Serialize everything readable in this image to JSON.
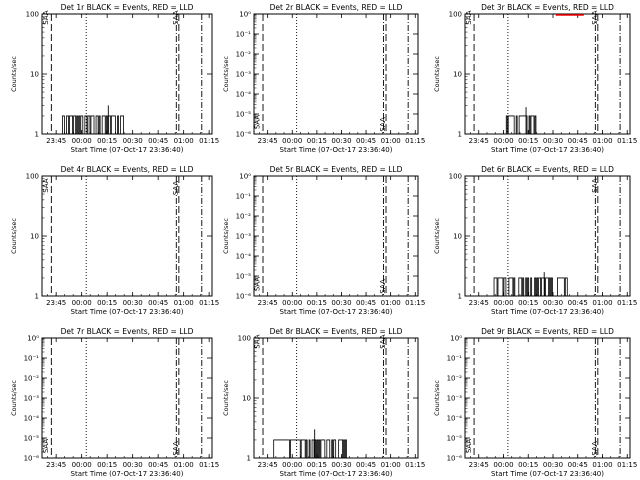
{
  "colors": {
    "events": "#000000",
    "lld": "#ff0000",
    "background": "#ffffff"
  },
  "common": {
    "xlabel": "Start Time (07-Oct-17 23:36:40)",
    "ylabel": "Counts/sec",
    "xticks": [
      "23:45",
      "00:00",
      "00:15",
      "00:30",
      "00:45",
      "01:00",
      "01:15"
    ],
    "x_tick_minutes_from_start": [
      8.33,
      23.33,
      38.33,
      53.33,
      68.33,
      83.33,
      98.33
    ],
    "xlim_minutes_from_start": [
      0,
      100
    ],
    "marker_lines": [
      {
        "style": "dashed",
        "minutes": 5.5
      },
      {
        "style": "dotted",
        "minutes": 26.0
      },
      {
        "style": "dash-dot",
        "minutes": 79.0
      },
      {
        "style": "dashed",
        "minutes": 80.5
      },
      {
        "style": "dash-dot",
        "minutes": 94.0
      }
    ]
  },
  "chart_data": [
    {
      "type": "line",
      "title": "Det 1r BLACK = Events, RED = LLD",
      "scale": "log",
      "ylim": [
        1,
        100
      ],
      "ytick_labels": [
        {
          "v": 1,
          "t": "1"
        },
        {
          "v": 10,
          "t": "10"
        },
        {
          "v": 100,
          "t": "100"
        }
      ],
      "series": [
        {
          "values_from_minutes": [
            [
              12,
              2
            ],
            [
              48,
              2
            ]
          ],
          "style": "bursts",
          "peak": {
            "minutes": 39,
            "value": 3
          }
        }
      ],
      "labels": [
        {
          "text": "SAA",
          "minutes": 3.5,
          "frac": 0.97
        },
        {
          "text": "SAA",
          "minutes": 80,
          "frac": 0.97
        }
      ]
    },
    {
      "type": "line",
      "title": "Det 2r BLACK = Events, RED = LLD",
      "scale": "log",
      "ylim": [
        1e-06,
        1
      ],
      "ytick_labels": [
        {
          "v": 1e-06,
          "t": "10⁻⁶"
        },
        {
          "v": 1e-05,
          "t": "10⁻⁵"
        },
        {
          "v": 0.0001,
          "t": "10⁻⁴"
        },
        {
          "v": 0.001,
          "t": "10⁻³"
        },
        {
          "v": 0.01,
          "t": "10⁻²"
        },
        {
          "v": 0.1,
          "t": "10⁻¹"
        },
        {
          "v": 1,
          "t": "10⁰"
        }
      ],
      "series": [],
      "labels": [
        {
          "text": "SAA",
          "minutes": 3.5,
          "frac": 0.1
        },
        {
          "text": "SAA",
          "minutes": 80,
          "frac": 0.08
        }
      ]
    },
    {
      "type": "line",
      "title": "Det 3r BLACK = Events, RED = LLD",
      "scale": "log",
      "ylim": [
        1,
        100
      ],
      "ytick_labels": [
        {
          "v": 1,
          "t": "1"
        },
        {
          "v": 10,
          "t": "10"
        },
        {
          "v": 100,
          "t": "100"
        }
      ],
      "series": [
        {
          "values_from_minutes": [
            [
              25,
              2
            ],
            [
              33,
              2
            ],
            [
              43,
              2
            ]
          ],
          "style": "bursts",
          "peak": {
            "minutes": 37,
            "value": 2.8
          }
        }
      ],
      "labels": [
        {
          "text": "SAA",
          "minutes": 3.5,
          "frac": 0.97
        },
        {
          "text": "SAA",
          "minutes": 80,
          "frac": 0.97
        }
      ]
    },
    {
      "type": "line",
      "title": "Det 4r BLACK = Events, RED = LLD",
      "scale": "log",
      "ylim": [
        1,
        100
      ],
      "ytick_labels": [
        {
          "v": 1,
          "t": "1"
        },
        {
          "v": 10,
          "t": "10"
        },
        {
          "v": 100,
          "t": "100"
        }
      ],
      "series": [],
      "labels": [
        {
          "text": "SAA",
          "minutes": 3.5,
          "frac": 0.92
        },
        {
          "text": "SAA",
          "minutes": 80,
          "frac": 0.9
        }
      ]
    },
    {
      "type": "line",
      "title": "Det 5r BLACK = Events, RED = LLD",
      "scale": "log",
      "ylim": [
        1e-06,
        1
      ],
      "ytick_labels": [
        {
          "v": 1e-06,
          "t": "10⁻⁶"
        },
        {
          "v": 1e-05,
          "t": "10⁻⁵"
        },
        {
          "v": 0.0001,
          "t": "10⁻⁴"
        },
        {
          "v": 0.001,
          "t": "10⁻³"
        },
        {
          "v": 0.01,
          "t": "10⁻²"
        },
        {
          "v": 0.1,
          "t": "10⁻¹"
        },
        {
          "v": 1,
          "t": "10⁰"
        }
      ],
      "series": [],
      "labels": [
        {
          "text": "SAA",
          "minutes": 3.5,
          "frac": 0.1
        },
        {
          "text": "SAA",
          "minutes": 80,
          "frac": 0.08
        }
      ]
    },
    {
      "type": "line",
      "title": "Det 6r BLACK = Events, RED = LLD",
      "scale": "log",
      "ylim": [
        1,
        100
      ],
      "ytick_labels": [
        {
          "v": 1,
          "t": "1"
        },
        {
          "v": 10,
          "t": "10"
        },
        {
          "v": 100,
          "t": "100"
        }
      ],
      "series": [
        {
          "values_from_minutes": [
            [
              17,
              2
            ],
            [
              50,
              2
            ],
            [
              62,
              2
            ]
          ],
          "style": "bursts",
          "peak": {
            "minutes": 48,
            "value": 2.5
          }
        }
      ],
      "labels": [
        {
          "text": "SAA",
          "minutes": 80,
          "frac": 0.92
        }
      ]
    },
    {
      "type": "line",
      "title": "Det 7r BLACK = Events, RED = LLD",
      "scale": "log",
      "ylim": [
        1e-06,
        1
      ],
      "ytick_labels": [
        {
          "v": 1e-06,
          "t": "10⁻⁶"
        },
        {
          "v": 1e-05,
          "t": "10⁻⁵"
        },
        {
          "v": 0.0001,
          "t": "10⁻⁴"
        },
        {
          "v": 0.001,
          "t": "10⁻³"
        },
        {
          "v": 0.01,
          "t": "10⁻²"
        },
        {
          "v": 0.1,
          "t": "10⁻¹"
        },
        {
          "v": 1,
          "t": "10⁰"
        }
      ],
      "series": [],
      "labels": [
        {
          "text": "SAA",
          "minutes": 3.5,
          "frac": 0.1
        },
        {
          "text": "SAA",
          "minutes": 80,
          "frac": 0.08
        }
      ]
    },
    {
      "type": "line",
      "title": "Det 8r BLACK = Events, RED = LLD",
      "scale": "log",
      "ylim": [
        1,
        100
      ],
      "ytick_labels": [
        {
          "v": 1,
          "t": "1"
        },
        {
          "v": 10,
          "t": "10"
        },
        {
          "v": 100,
          "t": "100"
        }
      ],
      "series": [
        {
          "values_from_minutes": [
            [
              12,
              2
            ],
            [
              43,
              2
            ],
            [
              57,
              2
            ]
          ],
          "style": "bursts",
          "peak": {
            "minutes": 37,
            "value": 3
          }
        }
      ],
      "labels": [
        {
          "text": "SAA",
          "minutes": 3.5,
          "frac": 0.97
        },
        {
          "text": "SAA",
          "minutes": 80,
          "frac": 0.97
        }
      ]
    },
    {
      "type": "line",
      "title": "Det 9r BLACK = Events, RED = LLD",
      "scale": "log",
      "ylim": [
        1e-06,
        1
      ],
      "ytick_labels": [
        {
          "v": 1e-06,
          "t": "10⁻⁶"
        },
        {
          "v": 1e-05,
          "t": "10⁻⁵"
        },
        {
          "v": 0.0001,
          "t": "10⁻⁴"
        },
        {
          "v": 0.001,
          "t": "10⁻³"
        },
        {
          "v": 0.01,
          "t": "10⁻²"
        },
        {
          "v": 0.1,
          "t": "10⁻¹"
        },
        {
          "v": 1,
          "t": "10⁰"
        }
      ],
      "series": [],
      "labels": [
        {
          "text": "SAA",
          "minutes": 3.5,
          "frac": 0.1
        },
        {
          "text": "SAA",
          "minutes": 80,
          "frac": 0.08
        }
      ]
    }
  ]
}
